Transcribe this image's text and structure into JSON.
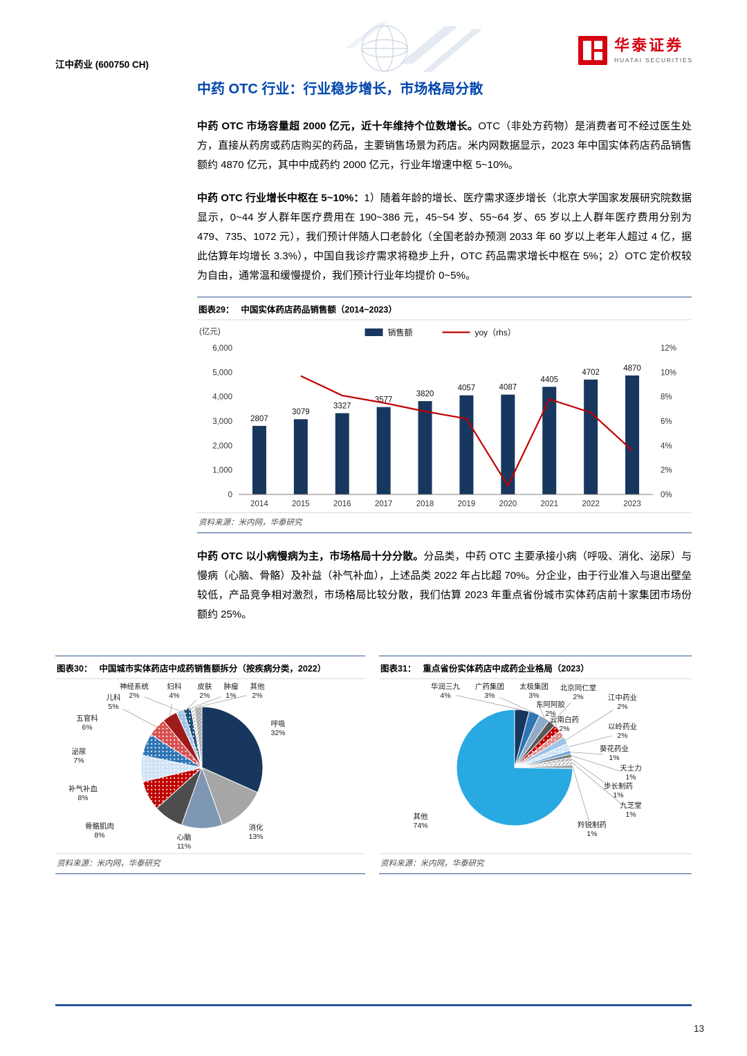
{
  "header": {
    "stock": "江中药业 (600750 CH)",
    "brand_cn": "华泰证券",
    "brand_en": "HUATAI SECURITIES"
  },
  "section": {
    "title": "中药 OTC 行业：行业稳步增长，市场格局分散",
    "paragraphs": [
      {
        "bold": "中药 OTC 市场容量超 2000 亿元，近十年维持个位数增长。",
        "rest": "OTC（非处方药物）是消费者可不经过医生处方，直接从药房或药店购买的药品，主要销售场景为药店。米内网数据显示，2023 年中国实体药店药品销售额约 4870 亿元，其中中成药约 2000 亿元，行业年增速中枢 5~10%。"
      },
      {
        "bold": "中药 OTC 行业增长中枢在 5~10%：",
        "rest": "1）随着年龄的增长、医疗需求逐步增长（北京大学国家发展研究院数据显示，0~44 岁人群年医疗费用在 190~386 元，45~54 岁、55~64 岁、65 岁以上人群年医疗费用分别为 479、735、1072 元），我们预计伴随人口老龄化（全国老龄办预测 2033 年 60 岁以上老年人超过 4 亿，据此估算年均增长 3.3%），中国自我诊疗需求将稳步上升，OTC 药品需求增长中枢在 5%；2）OTC 定价权较为自由，通常温和缓慢提价，我们预计行业年均提价 0~5%。"
      },
      {
        "bold": "中药 OTC 以小病慢病为主，市场格局十分分散。",
        "rest": "分品类，中药 OTC 主要承接小病（呼吸、消化、泌尿）与慢病（心脑、骨骼）及补益（补气补血），上述品类 2022 年占比超 70%。分企业，由于行业准入与退出壁垒较低，产品竞争相对激烈，市场格局比较分散，我们估算 2023 年重点省份城市实体药店前十家集团市场份额约 25%。"
      }
    ]
  },
  "figures": {
    "fig29": {
      "label": "图表29：",
      "caption": "中国实体药店药品销售额（2014~2023）",
      "source": "资料来源：米内网，华泰研究"
    },
    "fig30": {
      "label": "图表30：",
      "caption": "中国城市实体药店中成药销售额拆分（按疾病分类，2022）",
      "source": "资料来源：米内网，华泰研究"
    },
    "fig31": {
      "label": "图表31：",
      "caption": "重点省份实体药店中成药企业格局（2023）",
      "source": "资料来源：米内网，华泰研究"
    }
  },
  "footer": {
    "page_number": "13"
  },
  "chart_data": [
    {
      "id": "fig29",
      "type": "bar+line",
      "title": "中国实体药店药品销售额（2014~2023）",
      "categories": [
        "2014",
        "2015",
        "2016",
        "2017",
        "2018",
        "2019",
        "2020",
        "2021",
        "2022",
        "2023"
      ],
      "series": [
        {
          "name": "销售额",
          "type": "bar",
          "axis": "left",
          "values": [
            2807,
            3079,
            3327,
            3577,
            3820,
            4057,
            4087,
            4405,
            4702,
            4870
          ]
        },
        {
          "name": "yoy（rhs）",
          "type": "line",
          "axis": "right",
          "values": [
            null,
            9.7,
            8.1,
            7.5,
            6.8,
            6.2,
            0.7,
            7.8,
            6.7,
            3.6
          ]
        }
      ],
      "left_axis": {
        "label": "(亿元)",
        "min": 0,
        "max": 6000,
        "step": 1000
      },
      "right_axis": {
        "min": 0,
        "max": 12,
        "step": 2,
        "suffix": "%"
      },
      "colors": {
        "bar": "#17375e",
        "line": "#c00000"
      },
      "legend_position": "top",
      "grid": false
    },
    {
      "id": "fig30",
      "type": "pie",
      "title": "中国城市实体药店中成药销售额拆分（按疾病分类，2022）",
      "slices": [
        {
          "label": "呼吸",
          "value": 32,
          "color": "#17375e"
        },
        {
          "label": "消化",
          "value": 13,
          "color": "#a6a6a6"
        },
        {
          "label": "心脑",
          "value": 11,
          "color": "#7e97b5"
        },
        {
          "label": "骨骼肌肉",
          "value": 8,
          "color": "#4d4d4d"
        },
        {
          "label": "补气补血",
          "value": 8,
          "color": "#c00000",
          "pattern": "dots"
        },
        {
          "label": "泌尿",
          "value": 7,
          "color": "#cfe3f5",
          "pattern": "dots"
        },
        {
          "label": "五官科",
          "value": 6,
          "color": "#2e75b6",
          "pattern": "dots"
        },
        {
          "label": "儿科",
          "value": 5,
          "color": "#d94f4f",
          "pattern": "dots"
        },
        {
          "label": "妇科",
          "value": 4,
          "color": "#9e1b1b"
        },
        {
          "label": "神经系统",
          "value": 2,
          "color": "#9dc3e6",
          "pattern": "dots"
        },
        {
          "label": "皮肤",
          "value": 2,
          "color": "#1f4e79",
          "pattern": "dots"
        },
        {
          "label": "肿瘤",
          "value": 1,
          "color": "#ffffff",
          "pattern": "hatch"
        },
        {
          "label": "其他",
          "value": 2,
          "color": "#bfbfbf",
          "pattern": "hatch"
        }
      ]
    },
    {
      "id": "fig31",
      "type": "pie",
      "title": "重点省份实体药店中成药企业格局（2023）",
      "slices": [
        {
          "label": "华润三九",
          "value": 4,
          "color": "#17375e"
        },
        {
          "label": "广药集团",
          "value": 3,
          "color": "#2e75b6"
        },
        {
          "label": "太极集团",
          "value": 3,
          "color": "#8fabc9"
        },
        {
          "label": "北京同仁堂",
          "value": 2,
          "color": "#595959"
        },
        {
          "label": "东阿阿胶",
          "value": 2,
          "color": "#c00000",
          "pattern": "dots"
        },
        {
          "label": "云南白药",
          "value": 2,
          "color": "#de8f8f",
          "pattern": "dots"
        },
        {
          "label": "江中药业",
          "value": 2,
          "color": "#9dc3e6"
        },
        {
          "label": "以岭药业",
          "value": 2,
          "color": "#cfe3f5",
          "pattern": "dots"
        },
        {
          "label": "葵花药业",
          "value": 1,
          "color": "#6fa8dc"
        },
        {
          "label": "天士力",
          "value": 1,
          "color": "#808080"
        },
        {
          "label": "步长制药",
          "value": 1,
          "color": "#d9d9d9",
          "pattern": "hatch"
        },
        {
          "label": "九芝堂",
          "value": 1,
          "color": "#f2f2f2",
          "pattern": "hatch"
        },
        {
          "label": "羚锐制药",
          "value": 1,
          "color": "#a6a6a6"
        },
        {
          "label": "其他",
          "value": 74,
          "color": "#29a9e1"
        }
      ]
    }
  ]
}
